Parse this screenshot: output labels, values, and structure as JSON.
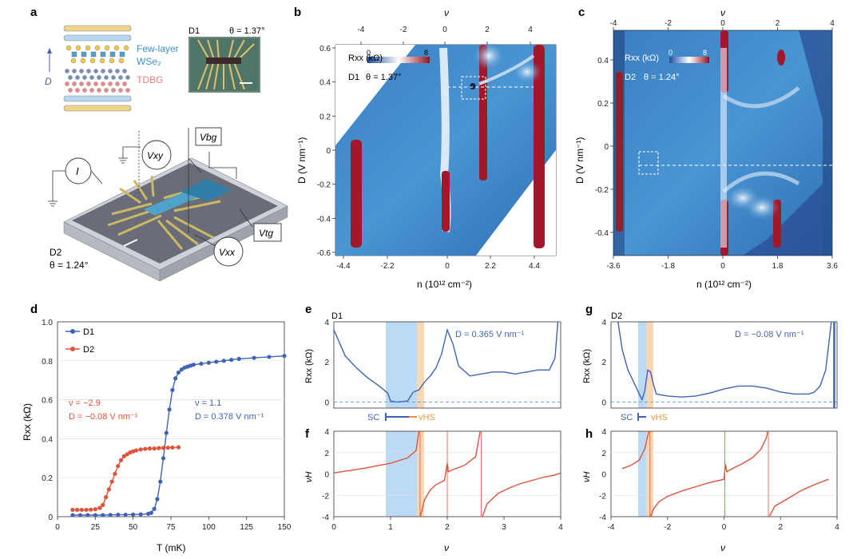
{
  "panels": {
    "a": {
      "letter": "a",
      "stack_labels": {
        "fewlayer": "Few-layer",
        "wse2": "WSe₂",
        "tdbg": "TDBG",
        "D": "D"
      },
      "d1_inset": {
        "device": "D1",
        "theta": "θ = 1.37°"
      },
      "device_labels": {
        "I": "I",
        "Vxy": "Vxy",
        "Vbg": "Vbg",
        "Vtg": "Vtg",
        "Vxx": "Vxx"
      },
      "d2_caption": {
        "device": "D2",
        "theta": "θ = 1.24°"
      }
    },
    "b": {
      "letter": "b",
      "device": "D1",
      "theta": "θ = 1.37°",
      "colorbar": {
        "label": "Rxx (kΩ)",
        "min": "0",
        "max": "8"
      },
      "top_axis_label": "ν",
      "top_ticks": [
        "-4",
        "-2",
        "0",
        "2",
        "4"
      ],
      "x_ticks": [
        "-4.4",
        "-2.2",
        "0",
        "2.2",
        "4.4"
      ],
      "y_ticks": [
        "0.6",
        "0.4",
        "0.2",
        "0",
        "-0.2",
        "-0.4",
        "-0.6"
      ],
      "xlabel": "n (10¹² cm⁻²)",
      "ylabel": "D (V nm⁻¹)"
    },
    "c": {
      "letter": "c",
      "device": "D2",
      "theta": "θ = 1.24°",
      "colorbar": {
        "label": "Rxx (kΩ)",
        "min": "0",
        "max": "8"
      },
      "top_axis_label": "ν",
      "top_ticks": [
        "-4",
        "-2",
        "0",
        "2",
        "4"
      ],
      "x_ticks": [
        "-3.6",
        "-1.8",
        "0",
        "1.8",
        "3.6"
      ],
      "y_ticks": [
        "0.4",
        "0.2",
        "0",
        "-0.2",
        "-0.4"
      ],
      "xlabel": "n (10¹² cm⁻²)",
      "ylabel": "D (V nm⁻¹)"
    },
    "d": {
      "letter": "d",
      "legend": [
        "D1",
        "D2"
      ],
      "ann_d2": {
        "nu": "ν = −2.9",
        "D": "D = −0.08 V nm⁻¹"
      },
      "ann_d1": {
        "nu": "ν = 1.1",
        "D": "D = 0.378 V nm⁻¹"
      },
      "xlabel": "T (mK)",
      "ylabel": "Rxx (kΩ)",
      "x_ticks": [
        "0",
        "25",
        "50",
        "75",
        "100",
        "125",
        "150"
      ],
      "y_ticks": [
        "0",
        "0.2",
        "0.4",
        "0.6",
        "0.8",
        "1.0"
      ]
    },
    "e": {
      "letter": "e",
      "device": "D1",
      "annot": "D = 0.365 V nm⁻¹",
      "ylabel": "Rxx (kΩ)",
      "y_ticks": [
        "0",
        "2",
        "4"
      ]
    },
    "g": {
      "letter": "g",
      "device": "D2",
      "annot": "D = −0.08 V nm⁻¹",
      "ylabel": "Rxx (kΩ)",
      "y_ticks": [
        "0",
        "2",
        "4"
      ]
    },
    "f": {
      "letter": "f",
      "ylabel": "νH",
      "y_ticks": [
        "4",
        "2",
        "0",
        "-2",
        "-4"
      ],
      "x_ticks": [
        "0",
        "1",
        "2",
        "3",
        "4"
      ],
      "xlabel": "ν"
    },
    "h": {
      "letter": "h",
      "ylabel": "νH",
      "y_ticks": [
        "4",
        "2",
        "0",
        "-2",
        "-4"
      ],
      "x_ticks": [
        "-4",
        "-2",
        "0",
        "2",
        "4"
      ],
      "xlabel": "ν"
    },
    "sc_vhs_left": {
      "sc": "SC",
      "vhs": "vHS"
    },
    "sc_vhs_right": {
      "sc": "SC",
      "vhs": "vHS"
    }
  },
  "colors": {
    "d1": "#3f63b5",
    "d2": "#e0533a",
    "sc_band": "#bcd9f5",
    "vhs_band": "#f7d7b4",
    "map_mid": "#3d86c8"
  },
  "chart_data": [
    {
      "panel": "d",
      "type": "line",
      "xlabel": "T (mK)",
      "ylabel": "Rxx (kΩ)",
      "xlim": [
        0,
        150
      ],
      "ylim": [
        0,
        1.0
      ],
      "series": [
        {
          "name": "D1",
          "x": [
            10,
            15,
            20,
            25,
            30,
            35,
            40,
            45,
            50,
            55,
            60,
            62,
            64,
            66,
            68,
            70,
            72,
            74,
            76,
            78,
            80,
            82,
            84,
            86,
            88,
            90,
            95,
            100,
            105,
            110,
            115,
            120,
            130,
            140,
            150
          ],
          "y": [
            0.008,
            0.008,
            0.008,
            0.008,
            0.008,
            0.009,
            0.01,
            0.01,
            0.011,
            0.012,
            0.015,
            0.02,
            0.04,
            0.09,
            0.18,
            0.3,
            0.43,
            0.55,
            0.65,
            0.71,
            0.74,
            0.755,
            0.765,
            0.77,
            0.775,
            0.78,
            0.785,
            0.79,
            0.795,
            0.8,
            0.805,
            0.81,
            0.815,
            0.82,
            0.825
          ]
        },
        {
          "name": "D2",
          "x": [
            10,
            13,
            16,
            19,
            22,
            25,
            28,
            30,
            32,
            34,
            36,
            38,
            40,
            42,
            44,
            46,
            48,
            50,
            52,
            55,
            58,
            61,
            64,
            67,
            70,
            73,
            76,
            80
          ],
          "y": [
            0.035,
            0.035,
            0.035,
            0.035,
            0.036,
            0.038,
            0.045,
            0.06,
            0.1,
            0.14,
            0.18,
            0.22,
            0.26,
            0.29,
            0.31,
            0.32,
            0.33,
            0.335,
            0.34,
            0.345,
            0.348,
            0.35,
            0.35,
            0.352,
            0.353,
            0.354,
            0.355,
            0.356
          ]
        }
      ]
    },
    {
      "panel": "e",
      "type": "line",
      "xlim": [
        0,
        4
      ],
      "ylim": [
        -0.3,
        4
      ],
      "series": [
        {
          "x": [
            0.0,
            0.2,
            0.4,
            0.6,
            0.8,
            0.95,
            1.0,
            1.1,
            1.2,
            1.3,
            1.4,
            1.5,
            1.55,
            1.6,
            1.7,
            1.8,
            1.9,
            2.0,
            2.1,
            2.2,
            2.4,
            2.6,
            2.8,
            3.0,
            3.2,
            3.4,
            3.6,
            3.8,
            3.9,
            3.95
          ],
          "y": [
            3.6,
            2.3,
            1.7,
            1.2,
            0.8,
            0.45,
            0.05,
            0.0,
            0.02,
            0.05,
            0.5,
            0.6,
            0.8,
            1.0,
            1.3,
            1.7,
            2.4,
            3.6,
            2.9,
            1.8,
            1.3,
            1.4,
            1.5,
            1.5,
            1.4,
            1.5,
            1.6,
            1.6,
            2.2,
            4.0
          ]
        }
      ]
    },
    {
      "panel": "g",
      "type": "line",
      "xlim": [
        -4,
        4
      ],
      "ylim": [
        -0.3,
        4
      ],
      "series": [
        {
          "x": [
            -3.75,
            -3.6,
            -3.4,
            -3.2,
            -3.0,
            -2.9,
            -2.8,
            -2.7,
            -2.6,
            -2.5,
            -2.4,
            -2.2,
            -2.0,
            -1.5,
            -1.0,
            -0.5,
            0.0,
            0.5,
            1.0,
            1.5,
            2.0,
            2.5,
            3.0,
            3.2,
            3.4,
            3.6,
            3.8
          ],
          "y": [
            4.0,
            2.6,
            1.6,
            1.0,
            0.4,
            0.12,
            0.6,
            1.6,
            1.5,
            0.9,
            0.4,
            0.35,
            0.3,
            0.25,
            0.3,
            0.45,
            0.65,
            0.8,
            0.8,
            0.7,
            0.5,
            0.4,
            0.4,
            0.5,
            0.8,
            1.6,
            4.0
          ]
        }
      ]
    },
    {
      "panel": "f",
      "type": "line",
      "xlim": [
        0,
        4
      ],
      "ylim": [
        -4,
        4
      ],
      "series": [
        {
          "x": [
            0,
            0.5,
            1.0,
            1.3,
            1.45,
            1.5,
            1.52,
            1.55,
            1.6,
            1.7,
            1.8,
            1.95,
            2.0,
            2.02,
            2.1,
            2.3,
            2.5,
            2.58,
            2.62,
            2.7,
            2.9,
            3.1,
            3.3,
            3.5,
            3.7,
            3.9,
            4.0
          ],
          "y": [
            0.1,
            0.5,
            1.0,
            1.5,
            2.2,
            4.0,
            -4,
            -3.5,
            -2.4,
            -1.5,
            -1.0,
            -0.6,
            1.0,
            0.2,
            0.4,
            0.8,
            1.6,
            4.0,
            -4,
            -2.8,
            -1.8,
            -1.3,
            -0.9,
            -0.6,
            -0.3,
            -0.1,
            0.1
          ]
        }
      ]
    },
    {
      "panel": "h",
      "type": "line",
      "xlim": [
        -4,
        4
      ],
      "ylim": [
        -4,
        4
      ],
      "series": [
        {
          "x": [
            -3.6,
            -3.3,
            -3.0,
            -2.8,
            -2.7,
            -2.65,
            -2.6,
            -2.5,
            -2.3,
            -2.0,
            -1.5,
            -1.0,
            -0.5,
            0.0,
            0.05,
            0.1,
            0.3,
            0.6,
            1.0,
            1.3,
            1.5,
            1.55,
            1.6,
            1.8,
            2.2,
            2.7,
            3.2,
            3.7
          ],
          "y": [
            0.5,
            0.8,
            1.3,
            2.4,
            3.6,
            4.0,
            -4,
            -3.3,
            -2.6,
            -2.1,
            -1.6,
            -1.2,
            -0.8,
            -0.5,
            0.9,
            0.2,
            0.5,
            0.9,
            1.5,
            2.3,
            3.4,
            4.0,
            -4,
            -3.0,
            -2.4,
            -1.6,
            -1.0,
            -0.5
          ]
        }
      ]
    }
  ]
}
